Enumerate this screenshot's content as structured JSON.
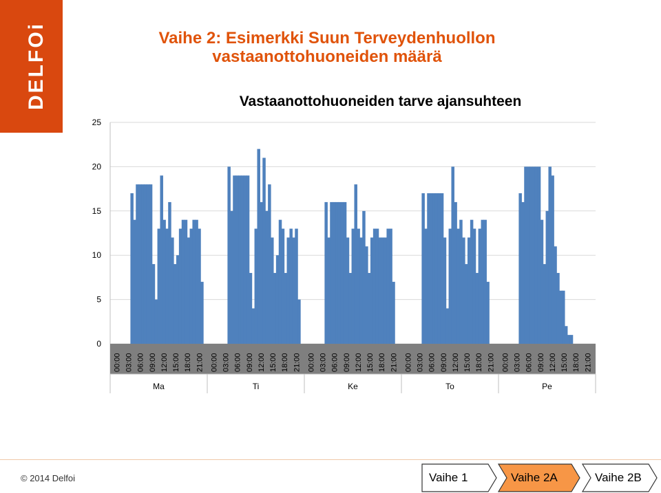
{
  "slide": {
    "title_line1": "Vaihe 2: Esimerkki Suun Terveydenhuollon",
    "title_line2": "vastaanottohuoneiden määrä",
    "logo_text": "DELFOi",
    "copyright": "© 2014 Delfoi"
  },
  "process_steps": [
    {
      "label": "Vaihe 1",
      "active": false
    },
    {
      "label": "Vaihe 2A",
      "active": true
    },
    {
      "label": "Vaihe 2B",
      "active": false
    }
  ],
  "colors": {
    "brand_orange": "#d9480f",
    "title_orange": "#e0530a",
    "bar_blue": "#4f81bd",
    "axis_band_gray": "#7f7f7f",
    "step_active": "#f79646"
  },
  "chart_data": {
    "type": "bar",
    "title": "Vastaanottohuoneiden tarve ajansuhteen",
    "xlabel": "",
    "ylabel": "",
    "ylim": [
      0,
      25
    ],
    "yticks": [
      0,
      5,
      10,
      15,
      20,
      25
    ],
    "grid": true,
    "legend": "none",
    "x": "hourly time slots over five weekdays",
    "tick_labels": [
      "00:00",
      "03:00",
      "06:00",
      "09:00",
      "12:00",
      "15:00",
      "18:00",
      "21:00"
    ],
    "days": [
      {
        "name": "Ma",
        "values": [
          0,
          0,
          0,
          0,
          0,
          0,
          0,
          17,
          14,
          18,
          18,
          18,
          18,
          18,
          18,
          9,
          5,
          13,
          19,
          14,
          13,
          16,
          12,
          9,
          10,
          13,
          14,
          14,
          12,
          13,
          14,
          14,
          13,
          7,
          0
        ]
      },
      {
        "name": "Ti",
        "values": [
          0,
          0,
          0,
          0,
          0,
          0,
          0,
          20,
          15,
          19,
          19,
          19,
          19,
          19,
          19,
          8,
          4,
          13,
          22,
          16,
          21,
          15,
          18,
          12,
          8,
          10,
          14,
          13,
          8,
          12,
          13,
          12,
          13,
          5,
          0
        ]
      },
      {
        "name": "Ke",
        "values": [
          0,
          0,
          0,
          0,
          0,
          0,
          0,
          16,
          12,
          16,
          16,
          16,
          16,
          16,
          16,
          12,
          8,
          13,
          18,
          13,
          12,
          15,
          11,
          8,
          12,
          13,
          13,
          12,
          12,
          12,
          13,
          13,
          7,
          0,
          0
        ]
      },
      {
        "name": "To",
        "values": [
          0,
          0,
          0,
          0,
          0,
          0,
          0,
          17,
          13,
          17,
          17,
          17,
          17,
          17,
          17,
          12,
          4,
          13,
          20,
          16,
          13,
          14,
          12,
          9,
          12,
          14,
          13,
          8,
          13,
          14,
          14,
          7,
          0,
          0,
          0
        ]
      },
      {
        "name": "Pe",
        "values": [
          0,
          0,
          0,
          0,
          0,
          0,
          0,
          17,
          16,
          20,
          20,
          20,
          20,
          20,
          20,
          14,
          9,
          15,
          20,
          19,
          11,
          8,
          6,
          6,
          2,
          1,
          1,
          0,
          0,
          0,
          0,
          0,
          0,
          0,
          0
        ]
      }
    ]
  }
}
